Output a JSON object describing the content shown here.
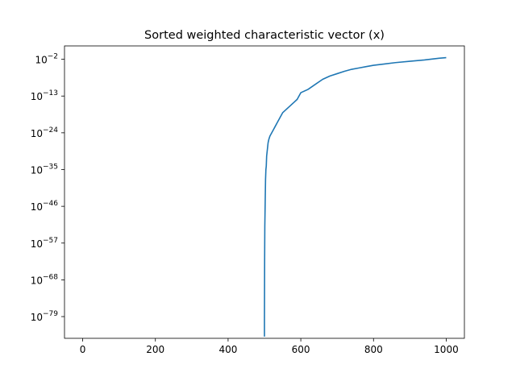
{
  "chart_data": {
    "type": "line",
    "title": "Sorted weighted characteristic vector (x)",
    "xlabel": "",
    "ylabel": "",
    "xscale": "linear",
    "yscale": "log",
    "xlim": [
      -50,
      1050
    ],
    "ylim_exponent": [
      -85.5,
      2.0
    ],
    "grid": false,
    "x_ticks": [
      {
        "value": 0,
        "label": "0"
      },
      {
        "value": 200,
        "label": "200"
      },
      {
        "value": 400,
        "label": "400"
      },
      {
        "value": 600,
        "label": "600"
      },
      {
        "value": 800,
        "label": "800"
      },
      {
        "value": 1000,
        "label": "1000"
      }
    ],
    "y_ticks": [
      {
        "exponent": -2,
        "label_base": "10",
        "label_exp": "−2"
      },
      {
        "exponent": -13,
        "label_base": "10",
        "label_exp": "−13"
      },
      {
        "exponent": -24,
        "label_base": "10",
        "label_exp": "−24"
      },
      {
        "exponent": -35,
        "label_base": "10",
        "label_exp": "−35"
      },
      {
        "exponent": -46,
        "label_base": "10",
        "label_exp": "−46"
      },
      {
        "exponent": -57,
        "label_base": "10",
        "label_exp": "−57"
      },
      {
        "exponent": -68,
        "label_base": "10",
        "label_exp": "−68"
      },
      {
        "exponent": -79,
        "label_base": "10",
        "label_exp": "−79"
      }
    ],
    "series": [
      {
        "color": "#1f77b4",
        "x": [
          500,
          500,
          500.5,
          501,
          502,
          503,
          504,
          505,
          506,
          508,
          510,
          512,
          515,
          520,
          525,
          530,
          535,
          540,
          545,
          550,
          560,
          570,
          580,
          590,
          600,
          620,
          640,
          660,
          680,
          700,
          720,
          740,
          760,
          780,
          800,
          830,
          860,
          900,
          940,
          980,
          1000
        ],
        "y_exponent": [
          -85,
          -80,
          -62,
          -52,
          -45,
          -38,
          -35,
          -34,
          -31,
          -29,
          -27,
          -26,
          -25,
          -24,
          -23,
          -22,
          -21,
          -20,
          -19,
          -18,
          -17,
          -16,
          -15,
          -14,
          -12,
          -11,
          -9.5,
          -8,
          -7,
          -6.3,
          -5.6,
          -5,
          -4.6,
          -4.2,
          -3.8,
          -3.4,
          -3,
          -2.6,
          -2.2,
          -1.7,
          -1.5
        ]
      }
    ]
  }
}
